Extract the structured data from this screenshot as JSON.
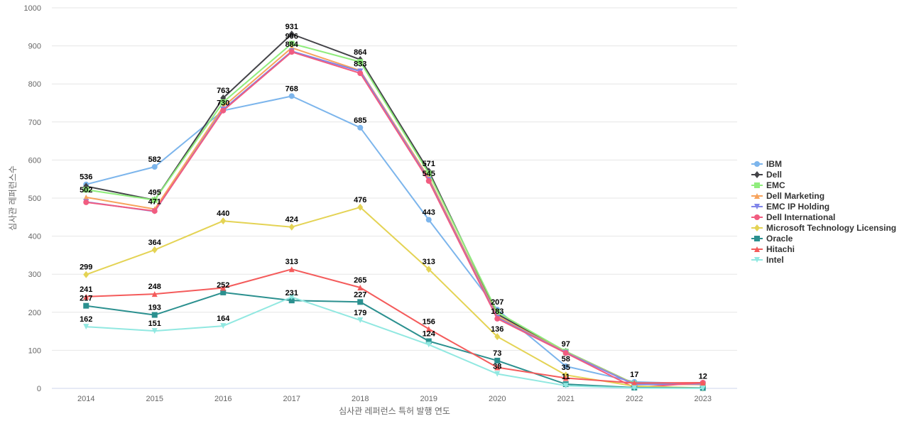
{
  "chart_data": {
    "type": "line",
    "title": "",
    "xlabel": "심사관 레퍼런스 특허 발행 연도",
    "ylabel": "심사관 레퍼런스수",
    "ylim": [
      0,
      1000
    ],
    "yticks": [
      0,
      100,
      200,
      300,
      400,
      500,
      600,
      700,
      800,
      900,
      1000
    ],
    "grid": true,
    "legend_position": "right",
    "categories": [
      "2014",
      "2015",
      "2016",
      "2017",
      "2018",
      "2019",
      "2020",
      "2021",
      "2022",
      "2023"
    ],
    "series": [
      {
        "name": "IBM",
        "color": "#7cb5ec",
        "marker": "circle",
        "values": [
          536,
          582,
          730,
          768,
          685,
          443,
          207,
          58,
          17,
          12
        ]
      },
      {
        "name": "Dell",
        "color": "#434348",
        "marker": "diamond",
        "values": [
          531,
          495,
          763,
          931,
          864,
          571,
          195,
          97,
          12,
          12
        ]
      },
      {
        "name": "EMC",
        "color": "#90ed7d",
        "marker": "square",
        "values": [
          522,
          495,
          752,
          906,
          858,
          565,
          200,
          97,
          12,
          10
        ]
      },
      {
        "name": "Dell Marketing",
        "color": "#f7a35c",
        "marker": "triangle",
        "values": [
          502,
          471,
          740,
          895,
          835,
          553,
          190,
          95,
          11,
          10
        ]
      },
      {
        "name": "EMC IP Holding",
        "color": "#8085e9",
        "marker": "triangle-down",
        "values": [
          490,
          465,
          733,
          886,
          833,
          548,
          186,
          94,
          10,
          12
        ]
      },
      {
        "name": "Dell International",
        "color": "#f15c80",
        "marker": "circle",
        "values": [
          489,
          466,
          730,
          884,
          828,
          545,
          183,
          93,
          2,
          15
        ]
      },
      {
        "name": "Microsoft Technology Licensing",
        "color": "#e4d354",
        "marker": "diamond",
        "values": [
          299,
          364,
          440,
          424,
          476,
          313,
          136,
          35,
          6,
          1
        ]
      },
      {
        "name": "Oracle",
        "color": "#2b908f",
        "marker": "square",
        "values": [
          217,
          193,
          252,
          231,
          227,
          124,
          73,
          11,
          2,
          1
        ]
      },
      {
        "name": "Hitachi",
        "color": "#f45b5b",
        "marker": "triangle",
        "values": [
          241,
          248,
          264,
          313,
          265,
          156,
          55,
          27,
          14,
          15
        ]
      },
      {
        "name": "Intel",
        "color": "#91e8e1",
        "marker": "triangle-down",
        "values": [
          162,
          151,
          164,
          240,
          179,
          115,
          38,
          7,
          1,
          0
        ]
      }
    ],
    "data_labels": [
      {
        "category": "2014",
        "value": 536,
        "text": "536"
      },
      {
        "category": "2014",
        "value": 502,
        "text": "502"
      },
      {
        "category": "2014",
        "value": 299,
        "text": "299"
      },
      {
        "category": "2014",
        "value": 241,
        "text": "241"
      },
      {
        "category": "2014",
        "value": 217,
        "text": "217"
      },
      {
        "category": "2014",
        "value": 162,
        "text": "162"
      },
      {
        "category": "2015",
        "value": 582,
        "text": "582"
      },
      {
        "category": "2015",
        "value": 495,
        "text": "495"
      },
      {
        "category": "2015",
        "value": 471,
        "text": "471"
      },
      {
        "category": "2015",
        "value": 364,
        "text": "364"
      },
      {
        "category": "2015",
        "value": 248,
        "text": "248"
      },
      {
        "category": "2015",
        "value": 193,
        "text": "193"
      },
      {
        "category": "2015",
        "value": 151,
        "text": "151"
      },
      {
        "category": "2016",
        "value": 763,
        "text": "763"
      },
      {
        "category": "2016",
        "value": 730,
        "text": "730"
      },
      {
        "category": "2016",
        "value": 440,
        "text": "440"
      },
      {
        "category": "2016",
        "value": 252,
        "text": "252"
      },
      {
        "category": "2016",
        "value": 164,
        "text": "164"
      },
      {
        "category": "2017",
        "value": 931,
        "text": "931"
      },
      {
        "category": "2017",
        "value": 906,
        "text": "906"
      },
      {
        "category": "2017",
        "value": 884,
        "text": "884"
      },
      {
        "category": "2017",
        "value": 768,
        "text": "768"
      },
      {
        "category": "2017",
        "value": 424,
        "text": "424"
      },
      {
        "category": "2017",
        "value": 313,
        "text": "313"
      },
      {
        "category": "2017",
        "value": 231,
        "text": "231"
      },
      {
        "category": "2018",
        "value": 864,
        "text": "864"
      },
      {
        "category": "2018",
        "value": 833,
        "text": "833"
      },
      {
        "category": "2018",
        "value": 685,
        "text": "685"
      },
      {
        "category": "2018",
        "value": 476,
        "text": "476"
      },
      {
        "category": "2018",
        "value": 265,
        "text": "265"
      },
      {
        "category": "2018",
        "value": 227,
        "text": "227"
      },
      {
        "category": "2018",
        "value": 179,
        "text": "179"
      },
      {
        "category": "2019",
        "value": 571,
        "text": "571"
      },
      {
        "category": "2019",
        "value": 545,
        "text": "545"
      },
      {
        "category": "2019",
        "value": 443,
        "text": "443"
      },
      {
        "category": "2019",
        "value": 313,
        "text": "313"
      },
      {
        "category": "2019",
        "value": 156,
        "text": "156"
      },
      {
        "category": "2019",
        "value": 124,
        "text": "124"
      },
      {
        "category": "2020",
        "value": 207,
        "text": "207"
      },
      {
        "category": "2020",
        "value": 183,
        "text": "183"
      },
      {
        "category": "2020",
        "value": 136,
        "text": "136"
      },
      {
        "category": "2020",
        "value": 73,
        "text": "73"
      },
      {
        "category": "2020",
        "value": 38,
        "text": "38"
      },
      {
        "category": "2021",
        "value": 97,
        "text": "97"
      },
      {
        "category": "2021",
        "value": 58,
        "text": "58"
      },
      {
        "category": "2021",
        "value": 35,
        "text": "35"
      },
      {
        "category": "2021",
        "value": 11,
        "text": "11"
      },
      {
        "category": "2022",
        "value": 17,
        "text": "17"
      },
      {
        "category": "2023",
        "value": 12,
        "text": "12"
      }
    ]
  }
}
